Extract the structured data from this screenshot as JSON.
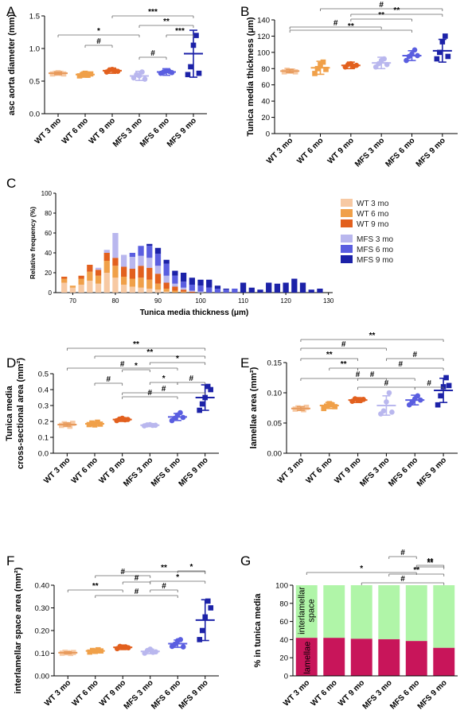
{
  "colors": {
    "WT 3 mo": "#f7c9a3",
    "WT 6 mo": "#f0a049",
    "WT 9 mo": "#e2601e",
    "MFS 3 mo": "#b9b7ee",
    "MFS 6 mo": "#5a5ee0",
    "MFS 9 mo": "#1c22a8",
    "lamellae": "#c8155a",
    "interlamellar": "#b0f5a8"
  },
  "chart_data": [
    {
      "panel": "A",
      "type": "scatter",
      "ylabel": "asc aorta diameter (mm)",
      "ylim": [
        0.0,
        1.5
      ],
      "yticks": [
        "0.0",
        "0.5",
        "1.0",
        "1.5"
      ],
      "categories": [
        "WT 3 mo",
        "WT 6 mo",
        "WT 9 mo",
        "MFS 3 mo",
        "MFS 6 mo",
        "MFS 9 mo"
      ],
      "means": [
        0.62,
        0.6,
        0.66,
        0.58,
        0.64,
        0.92
      ],
      "sd": [
        0.02,
        0.04,
        0.04,
        0.07,
        0.05,
        0.36
      ],
      "points": [
        [
          0.61,
          0.62,
          0.63,
          0.62,
          0.61
        ],
        [
          0.58,
          0.6,
          0.62,
          0.59,
          0.61
        ],
        [
          0.64,
          0.67,
          0.68,
          0.66,
          0.65
        ],
        [
          0.55,
          0.6,
          0.58,
          0.64,
          0.53
        ],
        [
          0.62,
          0.64,
          0.66,
          0.65,
          0.63
        ],
        [
          0.6,
          0.72,
          1.05,
          1.2,
          0.62
        ]
      ],
      "comparisons": [
        [
          0,
          3,
          "*"
        ],
        [
          1,
          2,
          "#"
        ],
        [
          3,
          4,
          "#"
        ],
        [
          2,
          5,
          "***"
        ],
        [
          3,
          5,
          "**"
        ],
        [
          4,
          5,
          "***"
        ]
      ]
    },
    {
      "panel": "B",
      "type": "scatter",
      "ylabel": "Tunica media thickness (μm)",
      "ylim": [
        0,
        140
      ],
      "yticks": [
        "0",
        "20",
        "40",
        "60",
        "80",
        "100",
        "120",
        "140"
      ],
      "categories": [
        "WT 3 mo",
        "WT 6 mo",
        "WT 9 mo",
        "MFS 3 mo",
        "MFS 6 mo",
        "MFS 9 mo"
      ],
      "means": [
        77,
        81,
        84,
        87,
        96,
        102
      ],
      "sd": [
        2,
        8,
        4,
        7,
        6,
        14
      ],
      "points": [
        [
          76,
          78,
          77,
          77,
          76
        ],
        [
          74,
          80,
          85,
          88,
          79
        ],
        [
          82,
          85,
          86,
          83,
          84
        ],
        [
          82,
          86,
          90,
          92,
          85
        ],
        [
          90,
          95,
          98,
          103,
          96
        ],
        [
          92,
          100,
          113,
          120,
          95
        ]
      ],
      "comparisons": [
        [
          0,
          3,
          "#"
        ],
        [
          0,
          4,
          "**"
        ],
        [
          2,
          4,
          "**"
        ],
        [
          1,
          5,
          "#"
        ],
        [
          2,
          5,
          "**"
        ]
      ]
    },
    {
      "panel": "C",
      "type": "bar",
      "xlabel": "Tunica media thickness (μm)",
      "ylabel": "Relative frequency (%)",
      "ylim": [
        0,
        100
      ],
      "yticks": [
        "0",
        "20",
        "40",
        "60",
        "80",
        "100"
      ],
      "xticks": [
        "70",
        "80",
        "90",
        "100",
        "110",
        "120",
        "130"
      ],
      "xlim": [
        66,
        131
      ],
      "legend": [
        "WT 3 mo",
        "WT 6 mo",
        "WT 9 mo",
        "MFS 3 mo",
        "MFS 6 mo",
        "MFS 9 mo"
      ],
      "bins": [
        {
          "x": 68,
          "v": [
            10,
            4,
            2,
            0,
            0,
            0
          ]
        },
        {
          "x": 70,
          "v": [
            5,
            2,
            0,
            0,
            0,
            0
          ]
        },
        {
          "x": 72,
          "v": [
            8,
            6,
            3,
            0,
            0,
            0
          ]
        },
        {
          "x": 74,
          "v": [
            12,
            9,
            7,
            0,
            0,
            0
          ]
        },
        {
          "x": 76,
          "v": [
            9,
            8,
            6,
            2,
            0,
            0
          ]
        },
        {
          "x": 78,
          "v": [
            20,
            12,
            8,
            3,
            0,
            0
          ]
        },
        {
          "x": 80,
          "v": [
            15,
            12,
            8,
            25,
            0,
            0
          ]
        },
        {
          "x": 82,
          "v": [
            8,
            8,
            10,
            12,
            0,
            0
          ]
        },
        {
          "x": 84,
          "v": [
            6,
            8,
            10,
            12,
            4,
            0
          ]
        },
        {
          "x": 86,
          "v": [
            5,
            10,
            12,
            10,
            10,
            0
          ]
        },
        {
          "x": 88,
          "v": [
            4,
            9,
            12,
            10,
            12,
            2
          ]
        },
        {
          "x": 90,
          "v": [
            3,
            6,
            10,
            8,
            12,
            6
          ]
        },
        {
          "x": 92,
          "v": [
            1,
            3,
            6,
            7,
            12,
            4
          ]
        },
        {
          "x": 94,
          "v": [
            0,
            2,
            4,
            3,
            8,
            5
          ]
        },
        {
          "x": 96,
          "v": [
            0,
            1,
            2,
            2,
            6,
            9
          ]
        },
        {
          "x": 98,
          "v": [
            0,
            0,
            1,
            1,
            6,
            7
          ]
        },
        {
          "x": 100,
          "v": [
            0,
            0,
            0,
            1,
            6,
            6
          ]
        },
        {
          "x": 102,
          "v": [
            0,
            0,
            0,
            0,
            5,
            8
          ]
        },
        {
          "x": 104,
          "v": [
            0,
            0,
            0,
            0,
            4,
            3
          ]
        },
        {
          "x": 106,
          "v": [
            0,
            0,
            0,
            0,
            3,
            1
          ]
        },
        {
          "x": 108,
          "v": [
            0,
            0,
            0,
            0,
            4,
            0
          ]
        },
        {
          "x": 110,
          "v": [
            0,
            0,
            0,
            0,
            0,
            10
          ]
        },
        {
          "x": 112,
          "v": [
            0,
            0,
            0,
            0,
            0,
            5
          ]
        },
        {
          "x": 114,
          "v": [
            0,
            0,
            0,
            0,
            0,
            3
          ]
        },
        {
          "x": 116,
          "v": [
            0,
            0,
            0,
            0,
            0,
            10
          ]
        },
        {
          "x": 118,
          "v": [
            0,
            0,
            0,
            0,
            0,
            9
          ]
        },
        {
          "x": 120,
          "v": [
            0,
            0,
            0,
            0,
            0,
            10
          ]
        },
        {
          "x": 122,
          "v": [
            0,
            0,
            0,
            0,
            0,
            14
          ]
        },
        {
          "x": 124,
          "v": [
            0,
            0,
            0,
            0,
            0,
            10
          ]
        },
        {
          "x": 126,
          "v": [
            0,
            0,
            0,
            0,
            0,
            3
          ]
        },
        {
          "x": 128,
          "v": [
            0,
            0,
            0,
            0,
            0,
            4
          ]
        }
      ]
    },
    {
      "panel": "D",
      "type": "scatter",
      "ylabel": "Tunica media",
      "ylabel2": "cross-sectional area (mm²)",
      "ylim": [
        0.0,
        0.5
      ],
      "yticks": [
        "0.0",
        "0.1",
        "0.2",
        "0.3",
        "0.4",
        "0.5"
      ],
      "categories": [
        "WT 3 mo",
        "WT 6 mo",
        "WT 9 mo",
        "MFS 3 mo",
        "MFS 6 mo",
        "MFS 9 mo"
      ],
      "means": [
        0.18,
        0.185,
        0.212,
        0.176,
        0.228,
        0.35
      ],
      "sd": [
        0.01,
        0.012,
        0.012,
        0.008,
        0.022,
        0.08
      ],
      "points": [
        [
          0.175,
          0.185,
          0.18,
          0.17,
          0.188
        ],
        [
          0.18,
          0.19,
          0.178,
          0.195,
          0.183
        ],
        [
          0.205,
          0.215,
          0.22,
          0.21,
          0.212
        ],
        [
          0.172,
          0.178,
          0.18,
          0.175,
          0.176
        ],
        [
          0.205,
          0.22,
          0.24,
          0.255,
          0.225
        ],
        [
          0.27,
          0.31,
          0.35,
          0.42,
          0.4
        ]
      ],
      "comparisons": [
        [
          0,
          4,
          "#"
        ],
        [
          1,
          2,
          "#"
        ],
        [
          2,
          3,
          "*"
        ],
        [
          3,
          4,
          "*"
        ],
        [
          4,
          5,
          "#"
        ],
        [
          2,
          5,
          "#"
        ],
        [
          2,
          4,
          "#"
        ],
        [
          1,
          5,
          "**"
        ],
        [
          0,
          5,
          "**"
        ],
        [
          3,
          5,
          "*"
        ]
      ]
    },
    {
      "panel": "E",
      "type": "scatter",
      "ylabel": "lamellae area (mm²)",
      "ylim": [
        0.0,
        0.15
      ],
      "yticks": [
        "0.00",
        "0.05",
        "0.10",
        "0.15"
      ],
      "categories": [
        "WT 3 mo",
        "WT 6 mo",
        "WT 9 mo",
        "MFS 3 mo",
        "MFS 6 mo",
        "MFS 9 mo"
      ],
      "means": [
        0.074,
        0.079,
        0.088,
        0.079,
        0.088,
        0.104
      ],
      "sd": [
        0.003,
        0.005,
        0.004,
        0.016,
        0.008,
        0.02
      ],
      "points": [
        [
          0.073,
          0.075,
          0.074,
          0.072,
          0.076
        ],
        [
          0.074,
          0.078,
          0.082,
          0.08,
          0.077
        ],
        [
          0.086,
          0.09,
          0.088,
          0.087,
          0.089
        ],
        [
          0.065,
          0.07,
          0.085,
          0.1,
          0.068
        ],
        [
          0.08,
          0.085,
          0.09,
          0.095,
          0.088
        ],
        [
          0.08,
          0.095,
          0.11,
          0.125,
          0.112
        ]
      ],
      "comparisons": [
        [
          0,
          3,
          "#"
        ],
        [
          0,
          4,
          "#"
        ],
        [
          0,
          2,
          "**"
        ],
        [
          1,
          2,
          "**"
        ],
        [
          2,
          3,
          "#"
        ],
        [
          2,
          4,
          "#"
        ],
        [
          3,
          5,
          "#"
        ],
        [
          4,
          5,
          "#"
        ],
        [
          2,
          5,
          "#"
        ],
        [
          0,
          5,
          "**"
        ]
      ]
    },
    {
      "panel": "F",
      "type": "scatter",
      "ylabel": "interlamellar space area (mm²)",
      "ylim": [
        0.0,
        0.4
      ],
      "yticks": [
        "0.00",
        "0.10",
        "0.20",
        "0.30",
        "0.40"
      ],
      "categories": [
        "WT 3 mo",
        "WT 6 mo",
        "WT 9 mo",
        "MFS 3 mo",
        "MFS 6 mo",
        "MFS 9 mo"
      ],
      "means": [
        0.102,
        0.11,
        0.126,
        0.108,
        0.142,
        0.246
      ],
      "sd": [
        0.004,
        0.008,
        0.01,
        0.01,
        0.016,
        0.09
      ],
      "points": [
        [
          0.1,
          0.104,
          0.102,
          0.099,
          0.103
        ],
        [
          0.105,
          0.112,
          0.108,
          0.115,
          0.11
        ],
        [
          0.12,
          0.13,
          0.126,
          0.128,
          0.124
        ],
        [
          0.1,
          0.112,
          0.118,
          0.104,
          0.106
        ],
        [
          0.13,
          0.14,
          0.155,
          0.16,
          0.128
        ],
        [
          0.16,
          0.2,
          0.26,
          0.33,
          0.3
        ]
      ],
      "comparisons": [
        [
          1,
          3,
          "#"
        ],
        [
          2,
          3,
          "#"
        ],
        [
          0,
          2,
          "**"
        ],
        [
          3,
          4,
          "#"
        ],
        [
          4,
          5,
          "*"
        ],
        [
          1,
          4,
          "#"
        ],
        [
          2,
          5,
          "**"
        ],
        [
          3,
          5,
          "*"
        ]
      ]
    },
    {
      "panel": "G",
      "type": "bar",
      "ylabel": "% in tunica media",
      "ylim": [
        0,
        100
      ],
      "yticks": [
        "0",
        "20",
        "40",
        "60",
        "80",
        "100"
      ],
      "categories": [
        "WT 3 mo",
        "WT 6 mo",
        "WT 9 mo",
        "MFS 3 mo",
        "MFS 6 mo",
        "MFS 9 mo"
      ],
      "series": [
        {
          "name": "lamellae",
          "values": [
            42,
            42,
            41,
            40.5,
            38.5,
            31
          ]
        },
        {
          "name": "interlamellar space",
          "values": [
            58,
            58,
            59,
            59.5,
            61.5,
            69
          ]
        }
      ],
      "in_bar_labels": [
        "interlamellar space",
        "lamellae"
      ],
      "comparisons": [
        [
          0,
          4,
          "*"
        ],
        [
          3,
          4,
          "#"
        ],
        [
          4,
          5,
          "**"
        ],
        [
          2,
          5,
          "#"
        ],
        [
          3,
          5,
          "**"
        ],
        [
          4,
          5,
          "**"
        ]
      ]
    }
  ]
}
